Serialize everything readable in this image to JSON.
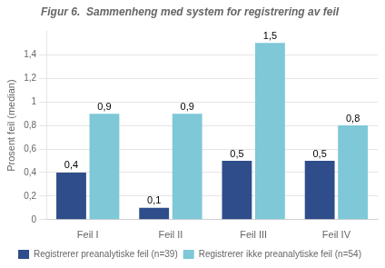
{
  "chart_data": {
    "type": "bar",
    "title": "Figur 6.  Sammenheng med system for registrering av feil",
    "ylabel": "Prosent feil (median)",
    "categories": [
      "Feil I",
      "Feil II",
      "Feil III",
      "Feil IV"
    ],
    "series": [
      {
        "name": "Registrerer preanalytiske feil (n=39)",
        "color": "#2E4D8A",
        "values": [
          0.4,
          0.1,
          0.5,
          0.5
        ],
        "value_labels": [
          "0,4",
          "0,1",
          "0,5",
          "0,5"
        ]
      },
      {
        "name": "Registrerer ikke preanalytiske feil (n=54)",
        "color": "#7EC8D8",
        "values": [
          0.9,
          0.9,
          1.5,
          0.8
        ],
        "value_labels": [
          "0,9",
          "0,9",
          "1,5",
          "0,8"
        ]
      }
    ],
    "ylim": [
      0,
      1.6
    ],
    "yticks": [
      0,
      {
        "value": 0.2,
        "label": "0,2"
      },
      {
        "value": 0.4,
        "label": "0,4"
      },
      {
        "value": 0.6,
        "label": "0,6"
      },
      {
        "value": 0.8,
        "label": "0,8"
      },
      1,
      {
        "value": 1.2,
        "label": "1,2"
      },
      {
        "value": 1.4,
        "label": "1,4"
      }
    ],
    "grid": true,
    "legend": "bottom",
    "data_labels": true
  }
}
